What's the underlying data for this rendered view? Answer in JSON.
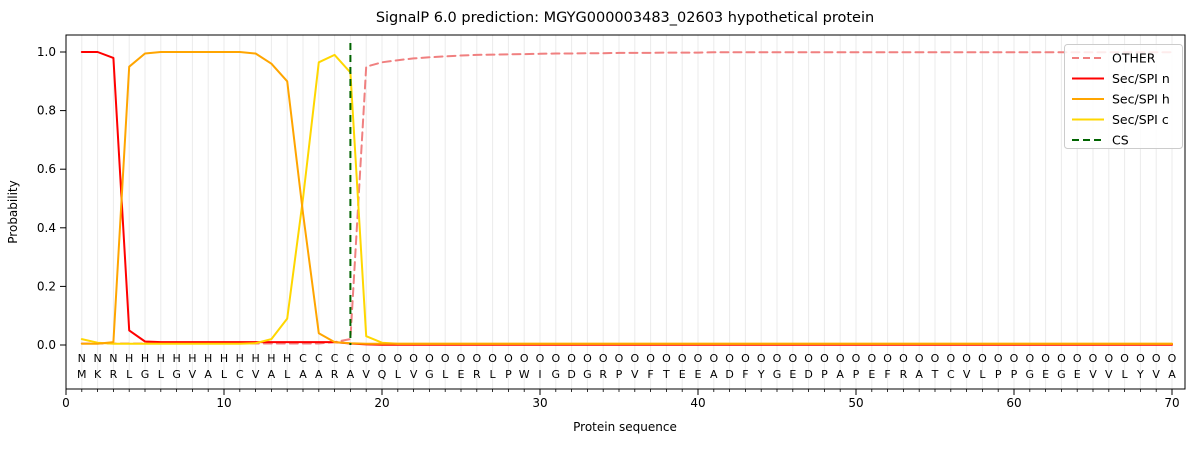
{
  "title": "SignalP 6.0 prediction: MGYG000003483_02603 hypothetical protein",
  "chart_data": {
    "type": "line",
    "title": "SignalP 6.0 prediction: MGYG000003483_02603 hypothetical protein",
    "xlabel": "Protein sequence",
    "ylabel": "Probability",
    "xlim": [
      0,
      70.8
    ],
    "ylim": [
      -0.15,
      1.06
    ],
    "x_major_ticks": [
      0,
      10,
      20,
      30,
      40,
      50,
      60,
      70
    ],
    "y_ticks": [
      0.0,
      0.2,
      0.4,
      0.6,
      0.8,
      1.0
    ],
    "grid": "vertical minor gridlines at every residue, no horizontal gridlines",
    "legend_position": "upper right",
    "x": [
      1,
      2,
      3,
      4,
      5,
      6,
      7,
      8,
      9,
      10,
      11,
      12,
      13,
      14,
      15,
      16,
      17,
      18,
      19,
      20,
      21,
      22,
      23,
      24,
      25,
      26,
      27,
      28,
      29,
      30,
      31,
      32,
      33,
      34,
      35,
      36,
      37,
      38,
      39,
      40,
      41,
      42,
      43,
      44,
      45,
      46,
      47,
      48,
      49,
      50,
      51,
      52,
      53,
      54,
      55,
      56,
      57,
      58,
      59,
      60,
      61,
      62,
      63,
      64,
      65,
      66,
      67,
      68,
      69,
      70
    ],
    "series": [
      {
        "name": "OTHER",
        "color": "#f08080",
        "style": "dashed",
        "values": [
          0.005,
          0.005,
          0.005,
          0.005,
          0.005,
          0.005,
          0.005,
          0.005,
          0.005,
          0.005,
          0.005,
          0.005,
          0.005,
          0.005,
          0.005,
          0.005,
          0.01,
          0.02,
          0.95,
          0.965,
          0.972,
          0.978,
          0.982,
          0.985,
          0.988,
          0.99,
          0.991,
          0.992,
          0.993,
          0.994,
          0.995,
          0.995,
          0.996,
          0.996,
          0.997,
          0.997,
          0.997,
          0.998,
          0.998,
          0.998,
          0.999,
          0.999,
          0.999,
          0.999,
          0.999,
          0.999,
          0.999,
          0.999,
          0.999,
          0.999,
          0.999,
          0.999,
          0.999,
          0.999,
          0.999,
          0.999,
          0.999,
          0.999,
          0.999,
          0.999,
          0.999,
          0.999,
          0.999,
          0.999,
          0.999,
          0.999,
          0.999,
          0.999,
          0.999,
          0.999
        ]
      },
      {
        "name": "Sec/SPI n",
        "color": "#ff0000",
        "style": "solid",
        "values": [
          1.0,
          1.0,
          0.98,
          0.05,
          0.012,
          0.01,
          0.01,
          0.01,
          0.01,
          0.01,
          0.01,
          0.01,
          0.01,
          0.01,
          0.01,
          0.01,
          0.01,
          0.005,
          0.002,
          0.001,
          0.001,
          0.001,
          0.001,
          0.001,
          0.001,
          0.001,
          0.001,
          0.001,
          0.001,
          0.001,
          0.001,
          0.001,
          0.001,
          0.001,
          0.001,
          0.001,
          0.001,
          0.001,
          0.001,
          0.001,
          0.001,
          0.001,
          0.001,
          0.001,
          0.001,
          0.001,
          0.001,
          0.001,
          0.001,
          0.001,
          0.001,
          0.001,
          0.001,
          0.001,
          0.001,
          0.001,
          0.001,
          0.001,
          0.001,
          0.001,
          0.001,
          0.001,
          0.001,
          0.001,
          0.001,
          0.001,
          0.001,
          0.001,
          0.001,
          0.001
        ]
      },
      {
        "name": "Sec/SPI h",
        "color": "#ffa500",
        "style": "solid",
        "values": [
          0.004,
          0.004,
          0.01,
          0.95,
          0.995,
          1.0,
          1.0,
          1.0,
          1.0,
          1.0,
          1.0,
          0.995,
          0.96,
          0.9,
          0.45,
          0.04,
          0.01,
          0.006,
          0.004,
          0.004,
          0.004,
          0.004,
          0.004,
          0.004,
          0.004,
          0.004,
          0.004,
          0.004,
          0.004,
          0.004,
          0.004,
          0.004,
          0.004,
          0.004,
          0.004,
          0.004,
          0.004,
          0.004,
          0.004,
          0.004,
          0.004,
          0.004,
          0.004,
          0.004,
          0.004,
          0.004,
          0.004,
          0.004,
          0.004,
          0.004,
          0.004,
          0.004,
          0.004,
          0.004,
          0.004,
          0.004,
          0.004,
          0.004,
          0.004,
          0.004,
          0.004,
          0.004,
          0.004,
          0.004,
          0.004,
          0.004,
          0.004,
          0.004,
          0.004,
          0.004
        ]
      },
      {
        "name": "Sec/SPI c",
        "color": "#ffd700",
        "style": "solid",
        "values": [
          0.02,
          0.008,
          0.004,
          0.004,
          0.004,
          0.004,
          0.004,
          0.004,
          0.004,
          0.004,
          0.004,
          0.006,
          0.02,
          0.09,
          0.5,
          0.965,
          0.99,
          0.93,
          0.03,
          0.008,
          0.004,
          0.004,
          0.004,
          0.004,
          0.004,
          0.004,
          0.004,
          0.004,
          0.004,
          0.004,
          0.004,
          0.004,
          0.004,
          0.004,
          0.004,
          0.004,
          0.004,
          0.004,
          0.004,
          0.004,
          0.004,
          0.004,
          0.004,
          0.004,
          0.004,
          0.004,
          0.004,
          0.004,
          0.004,
          0.004,
          0.004,
          0.004,
          0.004,
          0.004,
          0.004,
          0.004,
          0.004,
          0.004,
          0.004,
          0.004,
          0.004,
          0.004,
          0.004,
          0.004,
          0.004,
          0.004,
          0.004,
          0.004,
          0.004,
          0.004
        ]
      }
    ],
    "cs_marker": {
      "name": "CS",
      "color": "#006400",
      "style": "dashed",
      "x": 18
    },
    "sequence": "MKRLGLGVALCVALAARAVQLVGLERLPWIGDGRPVFTEEADFYGEDPAPEFRATCVLPPGEGEVVLYVA",
    "regions": "NNNHHHHHHHHHHHCCCCOOOOOOOOOOOOOOOOOOOOOOOOOOOOOOOOOOOOOOOOOOOOOOOOOOOO",
    "region_colors": {
      "N": "#ff0000",
      "H": "#ffa500",
      "C": "#ffd700",
      "O": "#8c8c8c"
    },
    "sequence_color": "#1f1f1f",
    "legend_labels": [
      "OTHER",
      "Sec/SPI n",
      "Sec/SPI h",
      "Sec/SPI c",
      "CS"
    ]
  }
}
